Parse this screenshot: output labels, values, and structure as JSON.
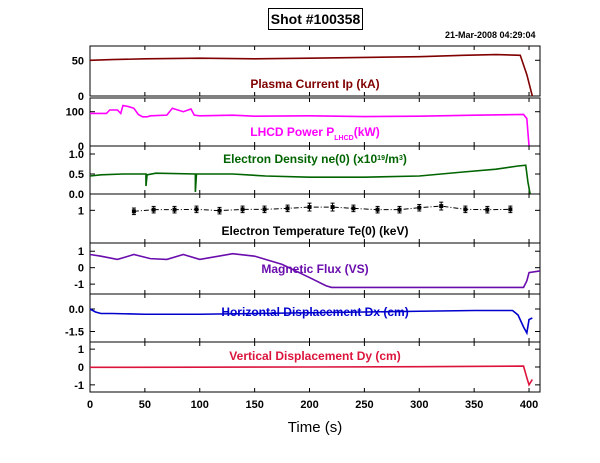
{
  "header": {
    "shot_label": "Shot #100358",
    "timestamp": "21-Mar-2008 04:29:04"
  },
  "x_axis": {
    "label": "Time (s)",
    "ticks": [
      0,
      50,
      100,
      150,
      200,
      250,
      300,
      350,
      400
    ],
    "range": [
      0,
      410
    ]
  },
  "chart_data": [
    {
      "type": "line",
      "title": "Plasma Current Ip (kA)",
      "color": "#800000",
      "ylim": [
        0,
        70
      ],
      "yticks": [
        {
          "v": 50,
          "label": "50"
        },
        {
          "v": 0,
          "label": "0"
        }
      ],
      "series": [
        {
          "x": [
            0,
            20,
            50,
            100,
            150,
            200,
            250,
            300,
            340,
            370,
            392,
            398,
            403
          ],
          "y": [
            50,
            51,
            52,
            53,
            52,
            53,
            54,
            55,
            57,
            58,
            57,
            30,
            0
          ]
        }
      ]
    },
    {
      "type": "line",
      "title": "LHCD Power P",
      "title_sub": "LHCD",
      "title_tail": "(kW)",
      "color": "#ff00ff",
      "ylim": [
        0,
        140
      ],
      "yticks": [
        {
          "v": 100,
          "label": "100"
        },
        {
          "v": 0,
          "label": "0"
        }
      ],
      "series": [
        {
          "x": [
            0,
            15,
            18,
            25,
            28,
            30,
            35,
            40,
            44,
            48,
            52,
            55,
            70,
            75,
            80,
            85,
            92,
            95,
            100,
            130,
            150,
            200,
            250,
            300,
            350,
            395,
            398,
            400
          ],
          "y": [
            95,
            95,
            105,
            105,
            95,
            118,
            115,
            110,
            92,
            85,
            85,
            88,
            90,
            110,
            105,
            100,
            108,
            90,
            88,
            90,
            87,
            88,
            86,
            87,
            90,
            92,
            80,
            0
          ]
        }
      ]
    },
    {
      "type": "line",
      "title": "Electron Density ne(0) (x10",
      "title_sup": "19",
      "title_tail": "/m",
      "title_sup2": "3",
      "title_end": ")",
      "color": "#006400",
      "ylim": [
        0,
        1.2
      ],
      "yticks": [
        {
          "v": 1.0,
          "label": "1.0"
        },
        {
          "v": 0.5,
          "label": "0.5"
        },
        {
          "v": 0.0,
          "label": "0.0"
        }
      ],
      "series": [
        {
          "x": [
            0,
            10,
            30,
            51,
            51,
            52,
            60,
            96,
            96,
            97,
            130,
            160,
            200,
            250,
            300,
            340,
            370,
            390,
            397,
            399,
            401
          ],
          "y": [
            0.45,
            0.48,
            0.5,
            0.5,
            0.2,
            0.48,
            0.52,
            0.5,
            0.05,
            0.5,
            0.5,
            0.45,
            0.42,
            0.42,
            0.45,
            0.55,
            0.62,
            0.7,
            0.72,
            0.3,
            0
          ]
        }
      ]
    },
    {
      "type": "scatter",
      "title": "Electron Temperature Te(0) (keV)",
      "color": "#000000",
      "ylim": [
        0,
        1.5
      ],
      "yticks": [
        {
          "v": 1,
          "label": "1"
        }
      ],
      "series": [
        {
          "x": [
            40,
            58,
            77,
            97,
            118,
            139,
            159,
            180,
            200,
            221,
            240,
            262,
            282,
            300,
            320,
            342,
            362,
            383
          ],
          "y": [
            0.97,
            1.02,
            1.02,
            1.03,
            0.99,
            1.03,
            1.03,
            1.06,
            1.1,
            1.1,
            1.06,
            1.02,
            1.02,
            1.08,
            1.13,
            1.03,
            1.02,
            1.03
          ],
          "err": [
            0.1,
            0.1,
            0.1,
            0.1,
            0.1,
            0.1,
            0.1,
            0.1,
            0.12,
            0.12,
            0.1,
            0.1,
            0.1,
            0.1,
            0.12,
            0.1,
            0.1,
            0.1
          ]
        }
      ]
    },
    {
      "type": "line",
      "title": "Magnetic Flux (VS)",
      "color": "#6a0dad",
      "ylim": [
        -1.6,
        1.5
      ],
      "yticks": [
        {
          "v": 1,
          "label": "1"
        },
        {
          "v": 0,
          "label": "0"
        },
        {
          "v": -1,
          "label": "-1"
        }
      ],
      "series": [
        {
          "x": [
            0,
            10,
            25,
            40,
            55,
            70,
            85,
            100,
            130,
            150,
            175,
            200,
            215,
            220,
            300,
            350,
            395,
            398,
            400,
            410
          ],
          "y": [
            0.8,
            0.7,
            0.5,
            0.8,
            0.55,
            0.5,
            0.8,
            0.5,
            0.85,
            0.7,
            0.2,
            -0.6,
            -1.1,
            -1.2,
            -1.2,
            -1.2,
            -1.2,
            -0.8,
            -0.3,
            -0.2
          ]
        }
      ]
    },
    {
      "type": "line",
      "title": "Horizontal Displacement Dx (cm)",
      "color": "#0000cd",
      "ylim": [
        -2.2,
        1.0
      ],
      "yticks": [
        {
          "v": 0.0,
          "label": "0.0"
        },
        {
          "v": -1.5,
          "label": "-1.5"
        }
      ],
      "series": [
        {
          "x": [
            0,
            5,
            10,
            20,
            50,
            100,
            150,
            200,
            250,
            300,
            350,
            385,
            390,
            395,
            398,
            400,
            403
          ],
          "y": [
            0.0,
            -0.2,
            -0.3,
            -0.3,
            -0.35,
            -0.35,
            -0.3,
            -0.25,
            -0.2,
            -0.15,
            -0.1,
            -0.1,
            -0.4,
            -1.2,
            -1.6,
            -0.7,
            -0.6
          ]
        }
      ]
    },
    {
      "type": "line",
      "title": "Vertical Displacement Dy (cm)",
      "color": "#dc143c",
      "ylim": [
        -1.4,
        1.4
      ],
      "yticks": [
        {
          "v": 1,
          "label": "1"
        },
        {
          "v": 0,
          "label": "0"
        },
        {
          "v": -1,
          "label": "-1"
        }
      ],
      "series": [
        {
          "x": [
            0,
            100,
            200,
            300,
            395,
            398,
            400,
            403
          ],
          "y": [
            -0.02,
            -0.01,
            0.0,
            0.02,
            0.05,
            -0.6,
            -1.0,
            -0.7
          ]
        }
      ]
    }
  ]
}
